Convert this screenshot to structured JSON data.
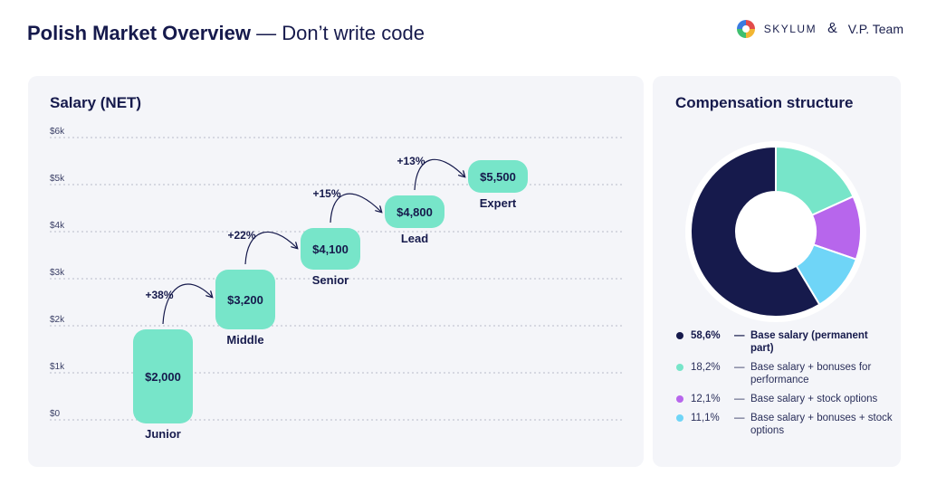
{
  "header": {
    "title_strong": "Polish Market Overview",
    "title_light": " — Don’t write code"
  },
  "brand": {
    "skylum": "SKYLUM",
    "amp": "&",
    "vp": "V.P. Team"
  },
  "salary_panel": {
    "title": "Salary (NET)"
  },
  "comp_panel": {
    "title": "Compensation structure"
  },
  "colors": {
    "bubble": "#77e5c9",
    "navy": "#161a4c",
    "teal": "#77e5c9",
    "purple": "#b766ec",
    "blue": "#6fd5f7"
  },
  "chart_data": [
    {
      "type": "bar",
      "title": "Salary (NET)",
      "categories": [
        "Junior",
        "Middle",
        "Senior",
        "Lead",
        "Expert"
      ],
      "values": [
        2000,
        3200,
        4100,
        4800,
        5500
      ],
      "value_labels": [
        "$2,000",
        "$3,200",
        "$4,100",
        "$4,800",
        "$5,500"
      ],
      "growth_labels": [
        "+38%",
        "+22%",
        "+15%",
        "+13%"
      ],
      "yticks": [
        0,
        1000,
        2000,
        3000,
        4000,
        5000,
        6000
      ],
      "ytick_labels": [
        "$0",
        "$1k",
        "$2k",
        "$3k",
        "$4k",
        "$5k",
        "$6k"
      ],
      "ylim": [
        0,
        6000
      ],
      "grid": true
    },
    {
      "type": "pie",
      "title": "Compensation structure",
      "slices": [
        {
          "label": "Base salary (permanent part)",
          "value": 58.6,
          "pct_label": "58,6%",
          "color": "#161a4c",
          "bold": true
        },
        {
          "label": "Base salary + bonuses for performance",
          "value": 18.2,
          "pct_label": "18,2%",
          "color": "#77e5c9",
          "bold": false
        },
        {
          "label": "Base salary + stock options",
          "value": 12.1,
          "pct_label": "12,1%",
          "color": "#b766ec",
          "bold": false
        },
        {
          "label": "Base salary + bonuses + stock options",
          "value": 11.1,
          "pct_label": "11,1%",
          "color": "#6fd5f7",
          "bold": false
        }
      ]
    }
  ]
}
